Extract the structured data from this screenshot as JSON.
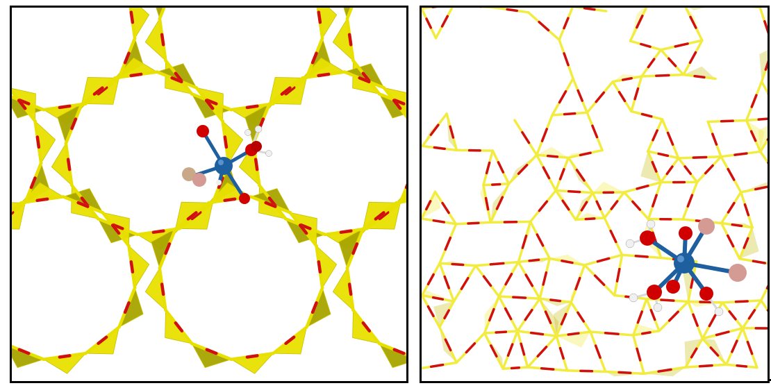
{
  "figure": {
    "panels": [
      {
        "id": "left",
        "view": "framework-along-channel",
        "colors": {
          "framework_tetra": "#e8e000",
          "framework_tetra_dark": "#a8a400",
          "framework_oxygen_bond": "#d01010",
          "metal_center": "#1e5fa0",
          "oxygen_atom": "#d00000",
          "hydrogen_atom": "#e8e8e8",
          "heteroatom": "#d49a94"
        }
      },
      {
        "id": "right",
        "view": "framework-perspective",
        "colors": {
          "framework_tetra": "#f2ec40",
          "framework_tetra_dark": "#c8c020",
          "framework_oxygen_bond": "#d01010",
          "metal_center": "#1e5fa0",
          "oxygen_atom": "#d00000",
          "hydrogen_atom": "#e8e8e8",
          "heteroatom": "#d49a94"
        }
      }
    ]
  }
}
